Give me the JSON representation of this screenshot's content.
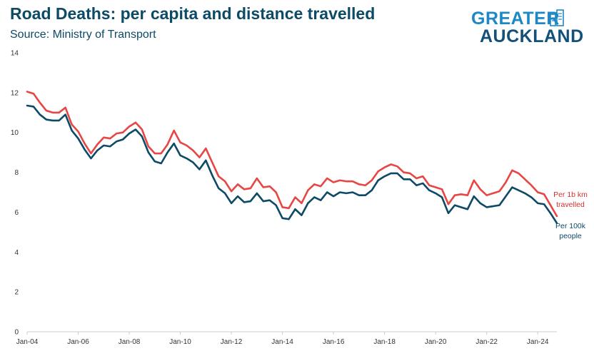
{
  "header": {
    "title": "Road Deaths: per capita and distance travelled",
    "subtitle": "Source: Ministry of Transport"
  },
  "logo": {
    "line1": "GREATER",
    "line2": "AUCKLAND"
  },
  "colors": {
    "title": "#0d4a66",
    "per_km": "#e84545",
    "per_capita": "#0d4a66",
    "axis": "#cccccc"
  },
  "chart_data": {
    "type": "line",
    "title": "Road Deaths: per capita and distance travelled",
    "xlabel": "",
    "ylabel": "",
    "ylim": [
      0,
      14
    ],
    "yticks": [
      0,
      2,
      4,
      6,
      8,
      10,
      12,
      14
    ],
    "xlim_quarters": [
      0,
      83
    ],
    "xticks": [
      {
        "q": 0,
        "label": "Jan-04"
      },
      {
        "q": 8,
        "label": "Jan-06"
      },
      {
        "q": 16,
        "label": "Jan-08"
      },
      {
        "q": 24,
        "label": "Jan-10"
      },
      {
        "q": 32,
        "label": "Jan-12"
      },
      {
        "q": 40,
        "label": "Jan-14"
      },
      {
        "q": 48,
        "label": "Jan-16"
      },
      {
        "q": 56,
        "label": "Jan-18"
      },
      {
        "q": 64,
        "label": "Jan-20"
      },
      {
        "q": 72,
        "label": "Jan-22"
      },
      {
        "q": 80,
        "label": "Jan-24"
      }
    ],
    "series": [
      {
        "name": "Per 1b km travelled",
        "label_lines": [
          "Per 1b km",
          "travelled"
        ],
        "color": "#e84545",
        "values": [
          12.05,
          11.95,
          11.5,
          11.1,
          11.0,
          11.0,
          11.25,
          10.4,
          10.05,
          9.45,
          8.95,
          9.4,
          9.75,
          9.7,
          9.95,
          10.0,
          10.3,
          10.5,
          10.15,
          9.3,
          8.95,
          8.95,
          9.4,
          10.1,
          9.5,
          9.35,
          9.1,
          8.75,
          9.2,
          8.5,
          7.8,
          7.55,
          7.05,
          7.4,
          7.15,
          7.2,
          7.7,
          7.25,
          7.3,
          7.0,
          6.25,
          6.2,
          6.75,
          6.45,
          7.1,
          7.4,
          7.3,
          7.7,
          7.5,
          7.6,
          7.55,
          7.55,
          7.4,
          7.35,
          7.6,
          8.05,
          8.25,
          8.4,
          8.3,
          8.0,
          7.95,
          7.7,
          7.8,
          7.35,
          7.25,
          7.15,
          6.4,
          6.85,
          6.9,
          6.85,
          7.6,
          7.15,
          6.85,
          6.95,
          7.05,
          7.5,
          8.1,
          7.95,
          7.65,
          7.35,
          7.0,
          6.9,
          6.35,
          5.8
        ],
        "end_label_value": 5.8
      },
      {
        "name": "Per 100k people",
        "label_lines": [
          "Per 100k",
          "people"
        ],
        "color": "#0d4a66",
        "values": [
          11.35,
          11.3,
          10.9,
          10.65,
          10.6,
          10.6,
          10.9,
          10.1,
          9.7,
          9.15,
          8.7,
          9.1,
          9.35,
          9.3,
          9.55,
          9.65,
          9.95,
          10.15,
          9.8,
          9.0,
          8.55,
          8.45,
          9.0,
          9.45,
          8.85,
          8.7,
          8.5,
          8.15,
          8.6,
          7.85,
          7.2,
          6.95,
          6.45,
          6.8,
          6.5,
          6.55,
          6.95,
          6.55,
          6.6,
          6.35,
          5.7,
          5.65,
          6.15,
          5.85,
          6.45,
          6.75,
          6.6,
          7.0,
          6.8,
          7.0,
          6.95,
          7.0,
          6.85,
          6.85,
          7.1,
          7.6,
          7.8,
          7.95,
          7.95,
          7.65,
          7.65,
          7.35,
          7.45,
          7.1,
          6.95,
          6.75,
          5.95,
          6.35,
          6.25,
          6.15,
          6.8,
          6.45,
          6.25,
          6.3,
          6.35,
          6.8,
          7.25,
          7.1,
          6.95,
          6.75,
          6.45,
          6.4,
          5.95,
          5.45
        ],
        "end_label_value": 5.45
      }
    ]
  }
}
